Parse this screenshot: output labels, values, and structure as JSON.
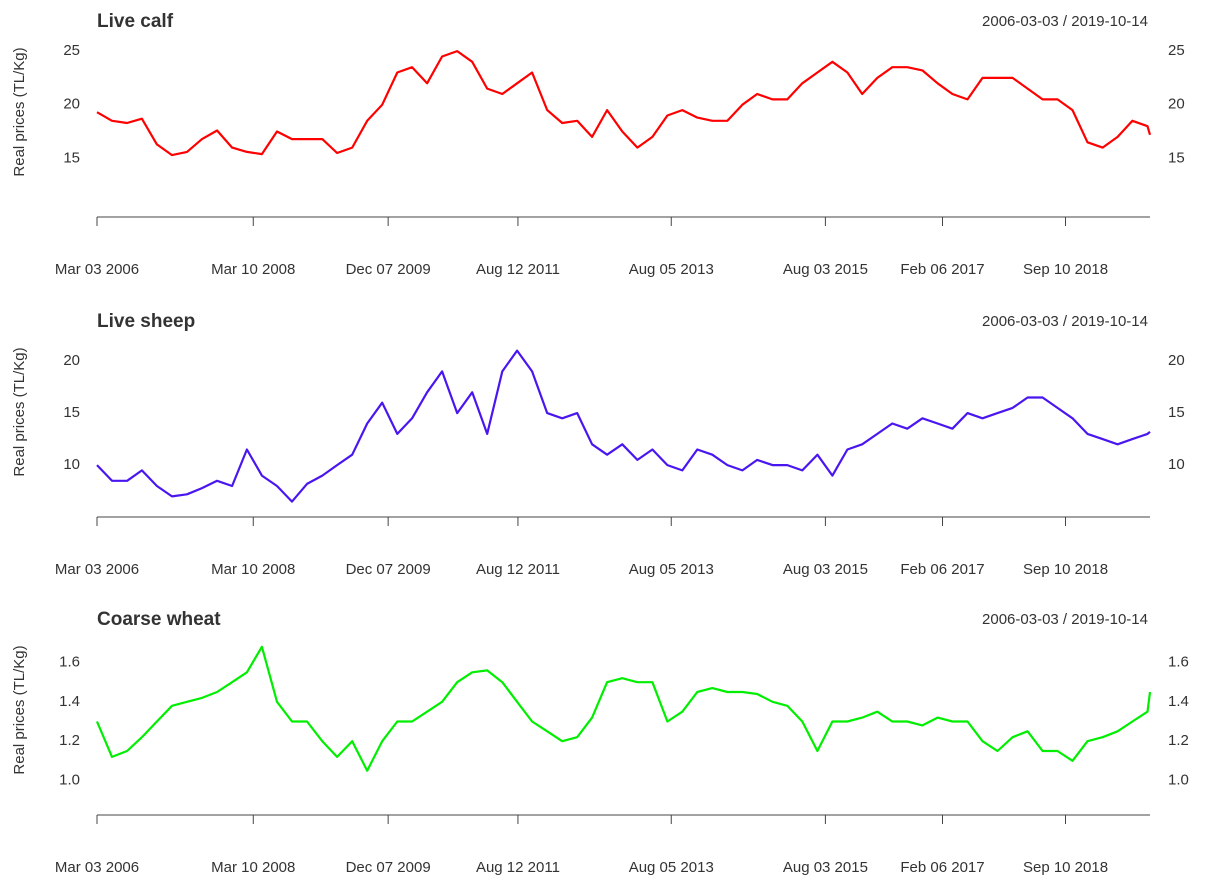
{
  "chart_data": [
    {
      "type": "line",
      "title": "Live calf",
      "subtitle": "2006-03-03 / 2019-10-14",
      "ylabel": "Real prices (TL/Kg)",
      "color": "#ff0000",
      "x": [
        "2006-03-03",
        "2006-05-13",
        "2006-07-23",
        "2006-10-01",
        "2006-12-11",
        "2007-02-20",
        "2007-05-02",
        "2007-07-12",
        "2007-09-21",
        "2007-12-01",
        "2008-02-09",
        "2008-04-20",
        "2008-06-30",
        "2008-09-09",
        "2008-11-19",
        "2009-01-30",
        "2009-04-10",
        "2009-06-20",
        "2009-08-30",
        "2009-11-09",
        "2010-01-19",
        "2010-03-30",
        "2010-06-09",
        "2010-08-19",
        "2010-10-29",
        "2011-01-08",
        "2011-03-20",
        "2011-05-30",
        "2011-08-08",
        "2011-10-18",
        "2011-12-28",
        "2012-03-08",
        "2012-05-18",
        "2012-07-27",
        "2012-10-06",
        "2012-12-17",
        "2013-02-26",
        "2013-05-08",
        "2013-07-18",
        "2013-09-26",
        "2013-12-06",
        "2014-02-15",
        "2014-04-27",
        "2014-07-07",
        "2014-09-15",
        "2014-11-26",
        "2015-02-04",
        "2015-04-16",
        "2015-06-26",
        "2015-09-05",
        "2015-11-15",
        "2016-01-24",
        "2016-04-04",
        "2016-06-14",
        "2016-08-24",
        "2016-11-03",
        "2017-01-14",
        "2017-03-25",
        "2017-06-04",
        "2017-08-14",
        "2017-10-24",
        "2018-01-03",
        "2018-03-15",
        "2018-05-25",
        "2018-08-03",
        "2018-10-13",
        "2018-12-23",
        "2019-03-04",
        "2019-05-14",
        "2019-07-23",
        "2019-10-02",
        "2019-10-14"
      ],
      "values": [
        19.3,
        18.5,
        18.3,
        18.7,
        16.3,
        15.3,
        15.6,
        16.8,
        17.6,
        16,
        15.6,
        15.4,
        17.5,
        16.8,
        16.8,
        16.8,
        15.5,
        16,
        18.5,
        20,
        23,
        23.5,
        22,
        24.5,
        25,
        24,
        21.5,
        21,
        22,
        23,
        19.5,
        18.3,
        18.5,
        17,
        19.5,
        17.5,
        16,
        17,
        19,
        19.5,
        18.8,
        18.5,
        18.5,
        20,
        21,
        20.5,
        20.5,
        22,
        23,
        24,
        23,
        21,
        22.5,
        23.5,
        23.5,
        23.2,
        22,
        21,
        20.5,
        22.5,
        22.5,
        22.5,
        21.5,
        20.5,
        20.5,
        19.5,
        16.5,
        16,
        17,
        18.5,
        18,
        17.2
      ],
      "xlim": [
        "2006-03-03",
        "2019-10-14"
      ],
      "xticks": [
        {
          "value": "2006-03-03",
          "label": "Mar 03 2006"
        },
        {
          "value": "2008-03-10",
          "label": "Mar 10 2008"
        },
        {
          "value": "2009-12-07",
          "label": "Dec 07 2009"
        },
        {
          "value": "2011-08-12",
          "label": "Aug 12 2011"
        },
        {
          "value": "2013-08-05",
          "label": "Aug 05 2013"
        },
        {
          "value": "2015-08-03",
          "label": "Aug 03 2015"
        },
        {
          "value": "2017-02-06",
          "label": "Feb 06 2017"
        },
        {
          "value": "2018-09-10",
          "label": "Sep 10 2018"
        }
      ],
      "ylim": [
        10,
        26.5
      ],
      "yticks": [
        15,
        20,
        25
      ]
    },
    {
      "type": "line",
      "title": "Live sheep",
      "subtitle": "2006-03-03 / 2019-10-14",
      "ylabel": "Real prices (TL/Kg)",
      "color": "#4a16f0",
      "x": [
        "2006-03-03",
        "2006-05-13",
        "2006-07-23",
        "2006-10-01",
        "2006-12-11",
        "2007-02-20",
        "2007-05-02",
        "2007-07-12",
        "2007-09-21",
        "2007-12-01",
        "2008-02-09",
        "2008-04-20",
        "2008-06-30",
        "2008-09-09",
        "2008-11-19",
        "2009-01-30",
        "2009-04-10",
        "2009-06-20",
        "2009-08-30",
        "2009-11-09",
        "2010-01-19",
        "2010-03-30",
        "2010-06-09",
        "2010-08-19",
        "2010-10-29",
        "2011-01-08",
        "2011-03-20",
        "2011-05-30",
        "2011-08-08",
        "2011-10-18",
        "2011-12-28",
        "2012-03-08",
        "2012-05-18",
        "2012-07-27",
        "2012-10-06",
        "2012-12-17",
        "2013-02-26",
        "2013-05-08",
        "2013-07-18",
        "2013-09-26",
        "2013-12-06",
        "2014-02-15",
        "2014-04-27",
        "2014-07-07",
        "2014-09-15",
        "2014-11-26",
        "2015-02-04",
        "2015-04-16",
        "2015-06-26",
        "2015-09-05",
        "2015-11-15",
        "2016-01-24",
        "2016-04-04",
        "2016-06-14",
        "2016-08-24",
        "2016-11-03",
        "2017-01-14",
        "2017-03-25",
        "2017-06-04",
        "2017-08-14",
        "2017-10-24",
        "2018-01-03",
        "2018-03-15",
        "2018-05-25",
        "2018-08-03",
        "2018-10-13",
        "2018-12-23",
        "2019-03-04",
        "2019-05-14",
        "2019-07-23",
        "2019-10-02",
        "2019-10-14"
      ],
      "values": [
        10,
        8.5,
        8.5,
        9.5,
        8,
        7,
        7.2,
        7.8,
        8.5,
        8,
        11.5,
        9,
        8,
        6.5,
        8.2,
        9,
        10,
        11,
        14,
        16,
        13,
        14.5,
        17,
        19,
        15,
        17,
        13,
        19,
        21,
        19,
        15,
        14.5,
        15,
        12,
        11,
        12,
        10.5,
        11.5,
        10,
        9.5,
        11.5,
        11,
        10,
        9.5,
        10.5,
        10,
        10,
        9.5,
        11,
        9,
        11.5,
        12,
        13,
        14,
        13.5,
        14.5,
        14,
        13.5,
        15,
        14.5,
        15,
        15.5,
        16.5,
        16.5,
        15.5,
        14.5,
        13,
        12.5,
        12,
        12.5,
        13,
        13.2
      ],
      "xlim": [
        "2006-03-03",
        "2019-10-14"
      ],
      "xticks": [
        {
          "value": "2006-03-03",
          "label": "Mar 03 2006"
        },
        {
          "value": "2008-03-10",
          "label": "Mar 10 2008"
        },
        {
          "value": "2009-12-07",
          "label": "Dec 07 2009"
        },
        {
          "value": "2011-08-12",
          "label": "Aug 12 2011"
        },
        {
          "value": "2013-08-05",
          "label": "Aug 05 2013"
        },
        {
          "value": "2015-08-03",
          "label": "Aug 03 2015"
        },
        {
          "value": "2017-02-06",
          "label": "Feb 06 2017"
        },
        {
          "value": "2018-09-10",
          "label": "Sep 10 2018"
        }
      ],
      "ylim": [
        5.5,
        22.5
      ],
      "yticks": [
        10,
        15,
        20
      ]
    },
    {
      "type": "line",
      "title": "Coarse wheat",
      "subtitle": "2006-03-03 / 2019-10-14",
      "ylabel": "Real prices (TL/Kg)",
      "color": "#00ee00",
      "x": [
        "2006-03-03",
        "2006-05-13",
        "2006-07-23",
        "2006-10-01",
        "2006-12-11",
        "2007-02-20",
        "2007-05-02",
        "2007-07-12",
        "2007-09-21",
        "2007-12-01",
        "2008-02-09",
        "2008-04-20",
        "2008-06-30",
        "2008-09-09",
        "2008-11-19",
        "2009-01-30",
        "2009-04-10",
        "2009-06-20",
        "2009-08-30",
        "2009-11-09",
        "2010-01-19",
        "2010-03-30",
        "2010-06-09",
        "2010-08-19",
        "2010-10-29",
        "2011-01-08",
        "2011-03-20",
        "2011-05-30",
        "2011-08-08",
        "2011-10-18",
        "2011-12-28",
        "2012-03-08",
        "2012-05-18",
        "2012-07-27",
        "2012-10-06",
        "2012-12-17",
        "2013-02-26",
        "2013-05-08",
        "2013-07-18",
        "2013-09-26",
        "2013-12-06",
        "2014-02-15",
        "2014-04-27",
        "2014-07-07",
        "2014-09-15",
        "2014-11-26",
        "2015-02-04",
        "2015-04-16",
        "2015-06-26",
        "2015-09-05",
        "2015-11-15",
        "2016-01-24",
        "2016-04-04",
        "2016-06-14",
        "2016-08-24",
        "2016-11-03",
        "2017-01-14",
        "2017-03-25",
        "2017-06-04",
        "2017-08-14",
        "2017-10-24",
        "2018-01-03",
        "2018-03-15",
        "2018-05-25",
        "2018-08-03",
        "2018-10-13",
        "2018-12-23",
        "2019-03-04",
        "2019-05-14",
        "2019-07-23",
        "2019-10-02",
        "2019-10-14"
      ],
      "values": [
        1.3,
        1.12,
        1.15,
        1.22,
        1.3,
        1.38,
        1.4,
        1.42,
        1.45,
        1.5,
        1.55,
        1.68,
        1.4,
        1.3,
        1.3,
        1.2,
        1.12,
        1.2,
        1.05,
        1.2,
        1.3,
        1.3,
        1.35,
        1.4,
        1.5,
        1.55,
        1.56,
        1.5,
        1.4,
        1.3,
        1.25,
        1.2,
        1.22,
        1.32,
        1.5,
        1.52,
        1.5,
        1.5,
        1.3,
        1.35,
        1.45,
        1.47,
        1.45,
        1.45,
        1.44,
        1.4,
        1.38,
        1.3,
        1.15,
        1.3,
        1.3,
        1.32,
        1.35,
        1.3,
        1.3,
        1.28,
        1.32,
        1.3,
        1.3,
        1.2,
        1.15,
        1.22,
        1.25,
        1.15,
        1.15,
        1.1,
        1.2,
        1.22,
        1.25,
        1.3,
        1.35,
        1.45
      ],
      "xlim": [
        "2006-03-03",
        "2019-10-14"
      ],
      "xticks": [
        {
          "value": "2006-03-03",
          "label": "Mar 03 2006"
        },
        {
          "value": "2008-03-10",
          "label": "Mar 10 2008"
        },
        {
          "value": "2009-12-07",
          "label": "Dec 07 2009"
        },
        {
          "value": "2011-08-12",
          "label": "Aug 12 2011"
        },
        {
          "value": "2013-08-05",
          "label": "Aug 05 2013"
        },
        {
          "value": "2015-08-03",
          "label": "Aug 03 2015"
        },
        {
          "value": "2017-02-06",
          "label": "Feb 06 2017"
        },
        {
          "value": "2018-09-10",
          "label": "Sep 10 2018"
        }
      ],
      "ylim": [
        0.85,
        1.75
      ],
      "yticks": [
        {
          "value": 1,
          "label": "1.0"
        },
        1.2,
        1.4,
        1.6
      ]
    }
  ]
}
